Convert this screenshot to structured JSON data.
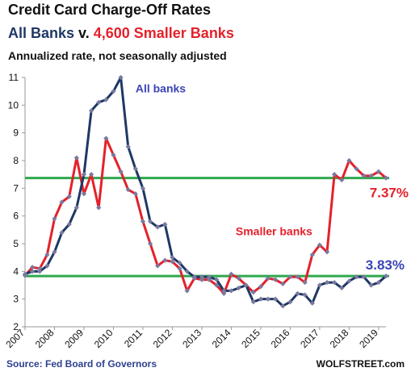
{
  "header": {
    "title": "Credit Card Charge-Off Rates",
    "subtitle_all": "All Banks",
    "subtitle_v": " v. ",
    "subtitle_small": "4,600 Smaller Banks",
    "note": "Annualized rate, not seasonally adjusted"
  },
  "footer": {
    "source": "Source: Fed Board of Governors",
    "credit": "WOLFSTREET.com"
  },
  "colors": {
    "all_banks": "#1f3864",
    "smaller_banks": "#e4212b",
    "marker": "#7a7aa0",
    "reference_line": "#2fa84f",
    "axis": "#999999"
  },
  "chart_data": {
    "type": "line",
    "ylim": [
      2,
      11
    ],
    "yticks": [
      2,
      3,
      4,
      5,
      6,
      7,
      8,
      9,
      10,
      11
    ],
    "xticks": [
      "2007",
      "2008",
      "2009",
      "2010",
      "2011",
      "2012",
      "2013",
      "2014",
      "2015",
      "2016",
      "2017",
      "2018",
      "2019"
    ],
    "x_start_year": 2007,
    "x_end_year": 2019.25,
    "series": [
      {
        "name": "All banks",
        "color": "#1f3864",
        "x": [
          2007.0,
          2007.25,
          2007.5,
          2007.75,
          2008.0,
          2008.25,
          2008.5,
          2008.75,
          2009.0,
          2009.25,
          2009.5,
          2009.75,
          2010.0,
          2010.25,
          2010.5,
          2010.75,
          2011.0,
          2011.25,
          2011.5,
          2011.75,
          2012.0,
          2012.25,
          2012.5,
          2012.75,
          2013.0,
          2013.25,
          2013.5,
          2013.75,
          2014.0,
          2014.25,
          2014.5,
          2014.75,
          2015.0,
          2015.25,
          2015.5,
          2015.75,
          2016.0,
          2016.25,
          2016.5,
          2016.75,
          2017.0,
          2017.25,
          2017.5,
          2017.75,
          2018.0,
          2018.25,
          2018.5,
          2018.75,
          2019.0,
          2019.25
        ],
        "values": [
          3.9,
          4.0,
          4.0,
          4.2,
          4.7,
          5.4,
          5.7,
          6.3,
          7.5,
          9.8,
          10.1,
          10.2,
          10.5,
          11.0,
          8.5,
          7.7,
          7.0,
          5.8,
          5.6,
          5.7,
          4.5,
          4.3,
          4.0,
          3.8,
          3.8,
          3.8,
          3.7,
          3.3,
          3.3,
          3.4,
          3.5,
          2.9,
          3.0,
          3.0,
          3.0,
          2.75,
          2.9,
          3.2,
          3.15,
          2.85,
          3.5,
          3.6,
          3.6,
          3.4,
          3.65,
          3.8,
          3.8,
          3.5,
          3.6,
          3.83
        ]
      },
      {
        "name": "Smaller banks",
        "color": "#e4212b",
        "x": [
          2007.0,
          2007.25,
          2007.5,
          2007.75,
          2008.0,
          2008.25,
          2008.5,
          2008.75,
          2009.0,
          2009.25,
          2009.5,
          2009.75,
          2010.0,
          2010.25,
          2010.5,
          2010.75,
          2011.0,
          2011.25,
          2011.5,
          2011.75,
          2012.0,
          2012.25,
          2012.5,
          2012.75,
          2013.0,
          2013.25,
          2013.5,
          2013.75,
          2014.0,
          2014.25,
          2014.5,
          2014.75,
          2015.0,
          2015.25,
          2015.5,
          2015.75,
          2016.0,
          2016.25,
          2016.5,
          2016.75,
          2017.0,
          2017.25,
          2017.5,
          2017.75,
          2018.0,
          2018.25,
          2018.5,
          2018.75,
          2019.0,
          2019.25
        ],
        "values": [
          3.85,
          4.15,
          4.1,
          4.6,
          5.9,
          6.5,
          6.7,
          8.1,
          6.8,
          7.5,
          6.3,
          8.8,
          8.2,
          7.6,
          6.95,
          6.8,
          5.8,
          5.0,
          4.2,
          4.4,
          4.35,
          4.1,
          3.3,
          3.75,
          3.7,
          3.7,
          3.5,
          3.2,
          3.9,
          3.75,
          3.5,
          3.25,
          3.45,
          3.75,
          3.7,
          3.55,
          3.8,
          3.8,
          3.6,
          4.6,
          4.95,
          4.7,
          7.5,
          7.3,
          8.0,
          7.7,
          7.45,
          7.45,
          7.6,
          7.37
        ]
      }
    ],
    "reference_lines": [
      {
        "value": 7.37,
        "label": "7.37%",
        "color": "#e4212b"
      },
      {
        "value": 3.83,
        "label": "3.83%",
        "color": "#3b45b5"
      }
    ],
    "annotations": [
      {
        "text": "All banks",
        "color": "#3b45b5"
      },
      {
        "text": "Smaller banks",
        "color": "#e4212b"
      }
    ],
    "grid": false,
    "legend": "none"
  }
}
